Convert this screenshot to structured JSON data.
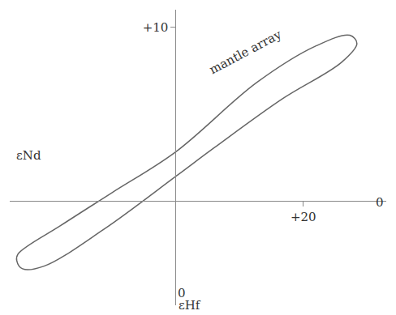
{
  "chart_data": {
    "type": "line",
    "x": [
      -24.7,
      -18.0,
      -10.0,
      0,
      12.7,
      22.0,
      27.3,
      28.4,
      26.0,
      16.7,
      6.0,
      0,
      -11.3,
      -20.7,
      -24.0,
      -24.9,
      -24.7
    ],
    "values": [
      -3.05,
      -1.41,
      0.47,
      2.82,
      6.81,
      8.92,
      9.53,
      9.06,
      7.98,
      5.87,
      3.05,
      1.41,
      -1.64,
      -3.76,
      -3.9,
      -3.43,
      -3.05
    ],
    "color": "#666666",
    "xlim": [
      -26,
      33
    ],
    "ylim": [
      -6,
      11
    ],
    "xticks": [
      {
        "value": 20,
        "label": "+20"
      }
    ],
    "yticks": [
      {
        "value": 10,
        "label": "+10"
      }
    ],
    "grid": false,
    "annotations": [
      {
        "text": "mantle array",
        "x": 11,
        "y": 8.6
      },
      {
        "text": "εNd",
        "x": -23,
        "y": 2.6
      },
      {
        "text": "εHf",
        "x": 2.2,
        "y": -6.0
      },
      {
        "text": "0",
        "x": 1.0,
        "y": -5.3
      },
      {
        "text": "0",
        "x": 32.0,
        "y": -0.1
      }
    ]
  }
}
